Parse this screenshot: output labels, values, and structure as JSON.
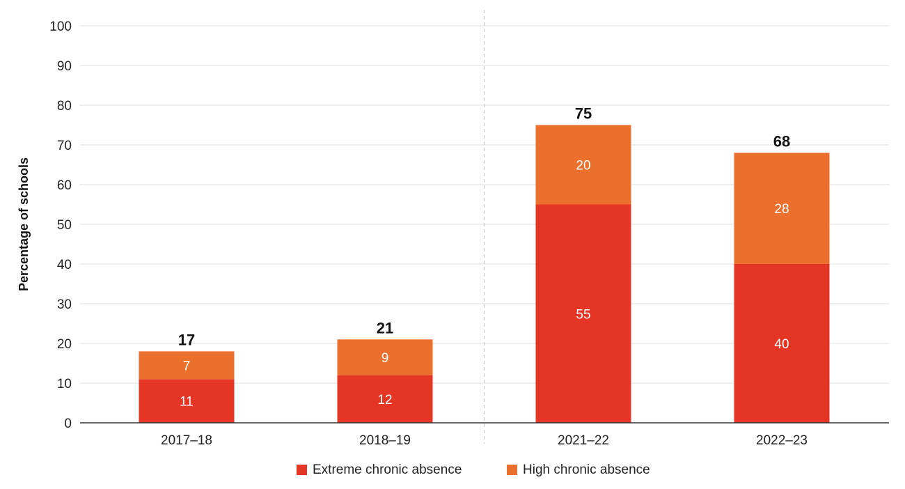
{
  "chart_data": {
    "type": "bar",
    "stacked": true,
    "categories": [
      "2017–18",
      "2018–19",
      "2021–22",
      "2022–23"
    ],
    "series": [
      {
        "name": "Extreme chronic absence",
        "values": [
          11,
          12,
          55,
          40
        ],
        "color": "#E53525"
      },
      {
        "name": "High chronic absence",
        "values": [
          7,
          9,
          20,
          28
        ],
        "color": "#EB6F2D"
      }
    ],
    "totals": [
      17,
      21,
      75,
      68
    ],
    "title": "",
    "xlabel": "",
    "ylabel": "Percentage of schools",
    "ylim": [
      0,
      100
    ],
    "yticks": [
      0,
      10,
      20,
      30,
      40,
      50,
      60,
      70,
      80,
      90,
      100
    ],
    "grid": true,
    "divider_after_category": 1,
    "legend_position": "bottom-center"
  }
}
